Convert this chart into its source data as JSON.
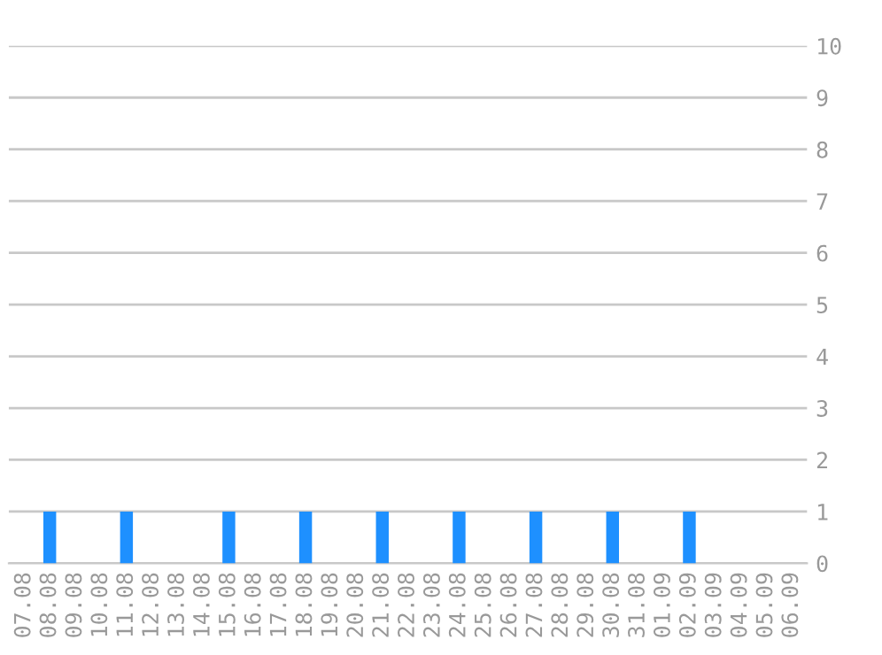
{
  "chart_data": {
    "type": "bar",
    "categories": [
      "07.08",
      "08.08",
      "09.08",
      "10.08",
      "11.08",
      "12.08",
      "13.08",
      "14.08",
      "15.08",
      "16.08",
      "17.08",
      "18.08",
      "19.08",
      "20.08",
      "21.08",
      "22.08",
      "23.08",
      "24.08",
      "25.08",
      "26.08",
      "27.08",
      "28.08",
      "29.08",
      "30.08",
      "31.08",
      "01.09",
      "02.09",
      "03.09",
      "04.09",
      "05.09",
      "06.09"
    ],
    "values": [
      0,
      1,
      0,
      0,
      1,
      0,
      0,
      0,
      1,
      0,
      0,
      1,
      0,
      0,
      1,
      0,
      0,
      1,
      0,
      0,
      1,
      0,
      0,
      1,
      0,
      0,
      1,
      0,
      0,
      0,
      0
    ],
    "color": "#1e90ff",
    "ylim": [
      0,
      10
    ],
    "yticks": [
      0,
      1,
      2,
      3,
      4,
      5,
      6,
      7,
      8,
      9,
      10
    ],
    "grid": "y"
  }
}
